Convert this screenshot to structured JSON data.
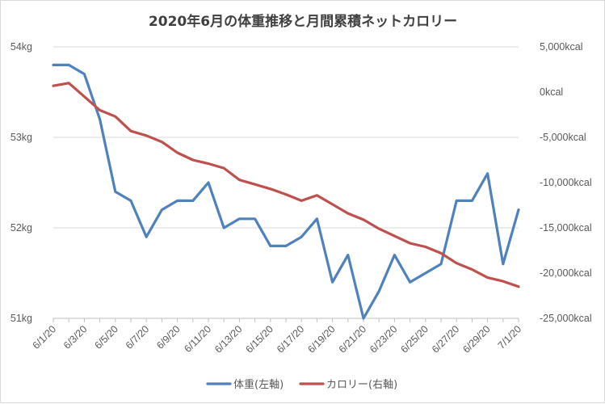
{
  "chart_data": {
    "type": "line",
    "title": "2020年6月の体重推移と月間累積ネットカロリー",
    "x": [
      "6/1/20",
      "6/2/20",
      "6/3/20",
      "6/4/20",
      "6/5/20",
      "6/6/20",
      "6/7/20",
      "6/8/20",
      "6/9/20",
      "6/10/20",
      "6/11/20",
      "6/12/20",
      "6/13/20",
      "6/14/20",
      "6/15/20",
      "6/16/20",
      "6/17/20",
      "6/18/20",
      "6/19/20",
      "6/20/20",
      "6/21/20",
      "6/22/20",
      "6/23/20",
      "6/24/20",
      "6/25/20",
      "6/26/20",
      "6/27/20",
      "6/28/20",
      "6/29/20",
      "6/30/20",
      "7/1/20"
    ],
    "xtick_labels": [
      "6/1/20",
      "6/3/20",
      "6/5/20",
      "6/7/20",
      "6/9/20",
      "6/11/20",
      "6/13/20",
      "6/15/20",
      "6/17/20",
      "6/19/20",
      "6/21/20",
      "6/23/20",
      "6/25/20",
      "6/27/20",
      "6/29/20",
      "7/1/20"
    ],
    "xlabel": "",
    "left_axis": {
      "ylabel": "",
      "ylim": [
        51,
        54
      ],
      "ticks": [
        "51kg",
        "52kg",
        "53kg",
        "54kg"
      ],
      "tick_values": [
        51,
        52,
        53,
        54
      ]
    },
    "right_axis": {
      "ylabel": "",
      "ylim": [
        -25000,
        5000
      ],
      "ticks": [
        "-25,000kcal",
        "-20,000kcal",
        "-15,000kcal",
        "-10,000kcal",
        "-5,000kcal",
        "0kcal",
        "5,000kcal"
      ],
      "tick_values": [
        -25000,
        -20000,
        -15000,
        -10000,
        -5000,
        0,
        5000
      ]
    },
    "series": [
      {
        "name": "体重(左軸)",
        "axis": "left",
        "color": "#4f81bd",
        "values": [
          53.8,
          53.8,
          53.7,
          53.2,
          52.4,
          52.3,
          51.9,
          52.2,
          52.3,
          52.3,
          52.5,
          52.0,
          52.1,
          52.1,
          51.8,
          51.8,
          51.9,
          52.1,
          51.4,
          51.7,
          51.0,
          51.3,
          51.7,
          51.4,
          51.5,
          51.6,
          52.3,
          52.3,
          52.6,
          51.6,
          52.2
        ]
      },
      {
        "name": "カロリー(右軸)",
        "axis": "right",
        "color": "#c0504d",
        "values": [
          700,
          1000,
          -500,
          -2000,
          -2700,
          -4300,
          -4800,
          -5500,
          -6700,
          -7500,
          -7900,
          -8400,
          -9700,
          -10200,
          -10700,
          -11300,
          -12000,
          -11400,
          -12400,
          -13400,
          -14100,
          -15100,
          -15900,
          -16700,
          -17100,
          -17800,
          -18900,
          -19600,
          -20500,
          -20900,
          -21500
        ]
      }
    ],
    "grid": "horizontal",
    "legend_position": "bottom"
  }
}
